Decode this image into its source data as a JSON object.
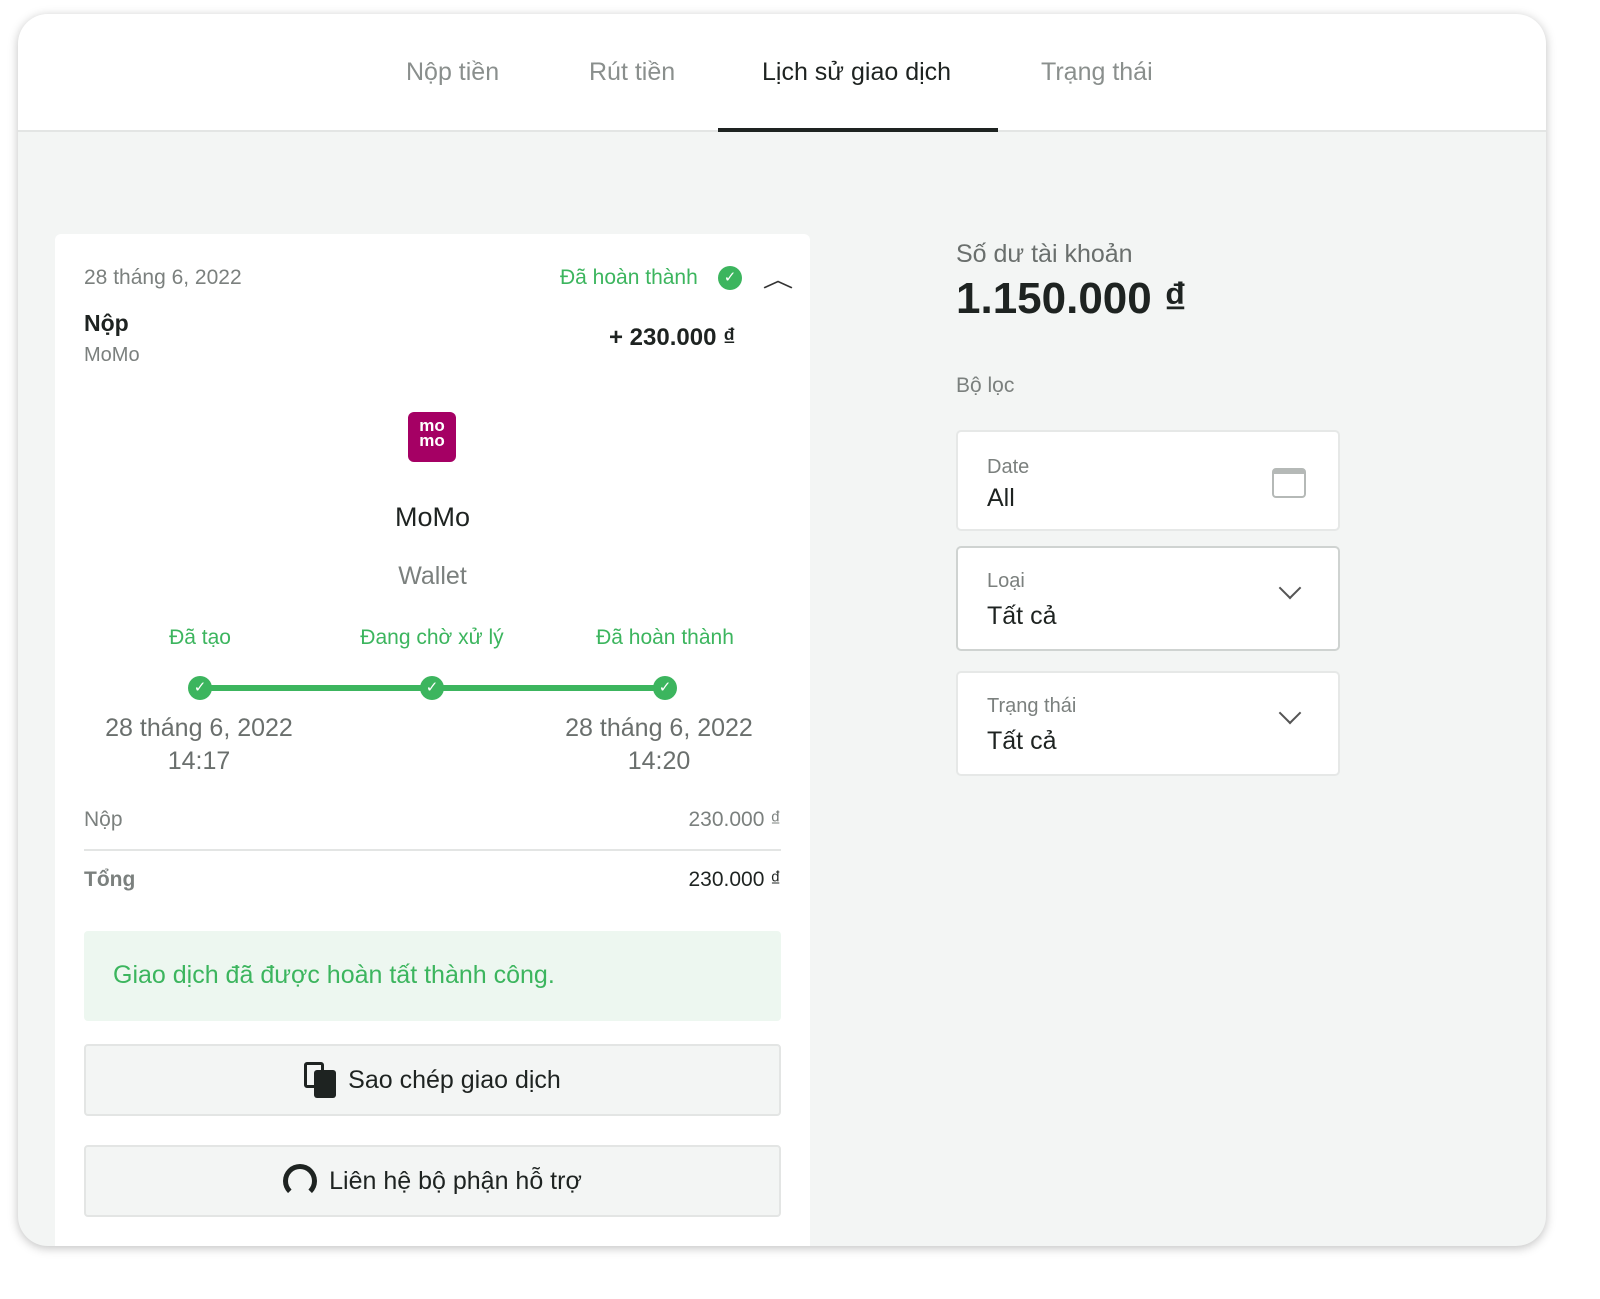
{
  "tabs": [
    {
      "label": "Nộp tiền"
    },
    {
      "label": "Rút tiền"
    },
    {
      "label": "Lịch sử giao dịch"
    },
    {
      "label": "Trạng thái"
    }
  ],
  "transaction": {
    "date": "28 tháng 6, 2022",
    "status": "Đã hoàn thành",
    "type": "Nộp",
    "method": "MoMo",
    "amount": "+ 230.000 ₫",
    "provider_name": "MoMo",
    "provider_type": "Wallet",
    "logo_text": "mo mo",
    "steps": [
      {
        "label": "Đã tạo",
        "date": "28 tháng 6, 2022",
        "time": "14:17"
      },
      {
        "label": "Đang chờ xử lý"
      },
      {
        "label": "Đã hoàn thành",
        "date": "28 tháng 6, 2022",
        "time": "14:20"
      }
    ],
    "rows": [
      {
        "label": "Nộp",
        "value": "230.000 ₫"
      },
      {
        "label": "Tổng",
        "value": "230.000 ₫"
      }
    ],
    "success_message": "Giao dịch đã được hoàn tất thành công.",
    "copy_button": "Sao chép giao dịch",
    "support_button": "Liên hệ bộ phận hỗ trợ"
  },
  "balance": {
    "label": "Số dư tài khoản",
    "value": "1.150.000 ₫"
  },
  "filters": {
    "title": "Bộ lọc",
    "date": {
      "label": "Date",
      "value": "All"
    },
    "type": {
      "label": "Loại",
      "value": "Tất cả"
    },
    "status": {
      "label": "Trạng thái",
      "value": "Tất cả"
    }
  },
  "colors": {
    "green": "#3cb55e",
    "momo": "#a50064"
  }
}
